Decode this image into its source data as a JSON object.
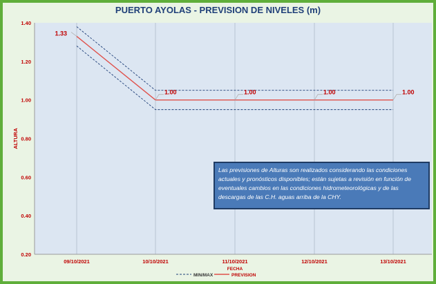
{
  "chart_data": {
    "type": "line",
    "title": "PUERTO AYOLAS - PREVISION DE NIVELES (m)",
    "xlabel": "FECHA",
    "ylabel": "ALTURA",
    "categories": [
      "09/10/2021",
      "10/10/2021",
      "11/10/2021",
      "12/10/2021",
      "13/10/2021"
    ],
    "ylim": [
      0.2,
      1.4
    ],
    "yticks": [
      "0.20",
      "0.40",
      "0.60",
      "0.80",
      "1.00",
      "1.20",
      "1.40"
    ],
    "series": [
      {
        "name": "PREVISION",
        "values": [
          1.33,
          1.0,
          1.0,
          1.0,
          1.0
        ],
        "color": "#e0504a",
        "style": "solid"
      },
      {
        "name": "MIN/MAX",
        "values": [
          1.38,
          1.05,
          1.05,
          1.05,
          1.05
        ],
        "color": "#1f3f78",
        "style": "dashed"
      },
      {
        "name": "MIN/MAX",
        "values": [
          1.28,
          0.95,
          0.95,
          0.95,
          0.95
        ],
        "color": "#1f3f78",
        "style": "dashed"
      }
    ],
    "data_labels": [
      "1.33",
      "1.00",
      "1.00",
      "1.00",
      "1.00"
    ],
    "legend": [
      {
        "label": "MIN/MAX",
        "style": "dashed",
        "color": "#1f3f78"
      },
      {
        "label": "PREVISION",
        "style": "solid",
        "color": "#e0504a"
      }
    ],
    "legend_position": "bottom",
    "grid": "vertical lines at each date",
    "annotation": "Las previsiones de Alturas son realizados considerando las condiciones actuales y pronósticos disponibles;  están sujetas a revisión en función de eventuales cambios en las condiciones hidrometeorológicas y de las descargas de las C.H. aguas arriba de la CHY."
  },
  "colors": {
    "frame_border": "#5fae3a",
    "frame_bg": "#eaf4e4",
    "plot_bg": "#dce6f2",
    "title": "#1f3f78",
    "label_red": "#c00000",
    "note_bg": "#4a7ab8"
  }
}
